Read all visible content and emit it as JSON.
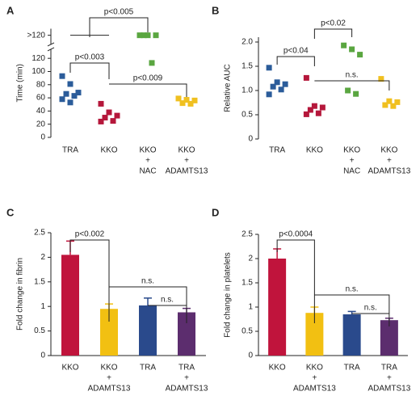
{
  "chart_data": [
    {
      "label": "A",
      "type": "dot",
      "ylabel": "Time (min)",
      "categories": [
        [
          "TRA"
        ],
        [
          "KKO"
        ],
        [
          "KKO",
          "+",
          "NAC"
        ],
        [
          "KKO",
          "+",
          "ADAMTS13"
        ]
      ],
      "colors": [
        "#2b5c9a",
        "#b5173b",
        "#5aa640",
        "#f0c020"
      ],
      "values": [
        [
          93,
          81,
          68,
          66,
          63,
          58,
          53
        ],
        [
          51,
          38,
          33,
          30,
          25,
          24
        ],
        [
          155,
          155,
          155,
          155,
          113
        ],
        [
          59,
          57,
          56,
          52,
          51
        ]
      ],
      "ylim": [
        0,
        165
      ],
      "yticks": [
        0,
        20,
        40,
        60,
        80,
        100,
        120,
        {
          "value": 155,
          "label": ">120"
        }
      ],
      "axis_break": true,
      "annotations": [
        "p<0.005",
        "p<0.003",
        "p<0.009"
      ]
    },
    {
      "label": "B",
      "type": "dot",
      "ylabel": "Relative AUC",
      "categories": [
        [
          "TRA"
        ],
        [
          "KKO"
        ],
        [
          "KKO",
          "+",
          "NAC"
        ],
        [
          "KKO",
          "+",
          "ADAMTS13"
        ]
      ],
      "colors": [
        "#2b5c9a",
        "#b5173b",
        "#5aa640",
        "#f0c020"
      ],
      "values": [
        [
          1.47,
          1.17,
          1.13,
          1.08,
          1.02,
          0.92
        ],
        [
          1.26,
          0.68,
          0.65,
          0.6,
          0.53,
          0.51
        ],
        [
          1.93,
          1.85,
          1.74,
          1.0,
          0.93
        ],
        [
          1.24,
          0.78,
          0.76,
          0.7,
          0.68
        ]
      ],
      "ylim": [
        0,
        2.1
      ],
      "yticks": [
        0,
        {
          "value": 0.5,
          "label": "0.5"
        },
        {
          "value": 1,
          "label": "1.0"
        },
        {
          "value": 1.5,
          "label": "1.5"
        },
        {
          "value": 2,
          "label": "2.0"
        }
      ],
      "annotations": [
        "p<0.04",
        "p<0.02",
        "n.s."
      ]
    },
    {
      "label": "C",
      "type": "bar",
      "ylabel": "Fold change in fibrin",
      "categories": [
        [
          "KKO"
        ],
        [
          "KKO",
          "+",
          "ADAMTS13"
        ],
        [
          "TRA"
        ],
        [
          "TRA",
          "+",
          "ADAMTS13"
        ]
      ],
      "colors": [
        "#c0143c",
        "#f2c012",
        "#2a4a8c",
        "#5c2d6e"
      ],
      "values": [
        2.05,
        0.95,
        1.02,
        0.88
      ],
      "errors": [
        0.28,
        0.1,
        0.15,
        0.08
      ],
      "ylim": [
        0,
        2.5
      ],
      "yticks": [
        0,
        0.5,
        1,
        1.5,
        2,
        2.5
      ],
      "annotations": [
        "p<0.002",
        "n.s.",
        "n.s."
      ]
    },
    {
      "label": "D",
      "type": "bar",
      "ylabel": "Fold change in platelets",
      "categories": [
        [
          "KKO"
        ],
        [
          "KKO",
          "+",
          "ADAMTS13"
        ],
        [
          "TRA"
        ],
        [
          "TRA",
          "+",
          "ADAMTS13"
        ]
      ],
      "colors": [
        "#c0143c",
        "#f2c012",
        "#2a4a8c",
        "#5c2d6e"
      ],
      "values": [
        2.0,
        0.88,
        0.85,
        0.73
      ],
      "errors": [
        0.2,
        0.12,
        0.06,
        0.04
      ],
      "ylim": [
        0,
        2.5
      ],
      "yticks": [
        0,
        0.5,
        1,
        1.5,
        2,
        2.5
      ],
      "annotations": [
        "p<0.0004",
        "n.s.",
        "n.s."
      ]
    }
  ]
}
